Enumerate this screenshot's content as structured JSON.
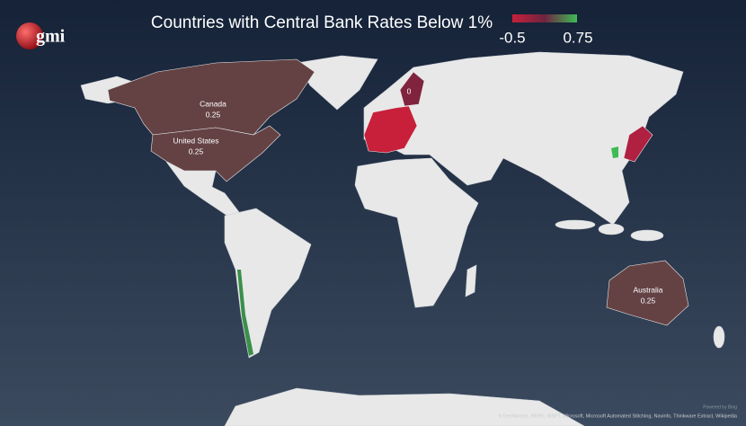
{
  "title": "Countries with Central Bank Rates Below 1%",
  "logo": "gmi",
  "legend": {
    "min": -0.5,
    "max": 0.75,
    "min_color": "#c8203a",
    "mid_color": "#6e2440",
    "max_color": "#3dbb55"
  },
  "regions": [
    {
      "name": "Canada",
      "value": 0.25
    },
    {
      "name": "United States",
      "value": 0.25
    },
    {
      "name": "Australia",
      "value": 0.25
    },
    {
      "value": 0
    }
  ],
  "powered_by": "Powered by Bing",
  "credits": "© GeoNames, HERE, MSFT, Microsoft, Microsoft Automated Stitching, Navinfo, Thinkware Extract, Wikipedia"
}
